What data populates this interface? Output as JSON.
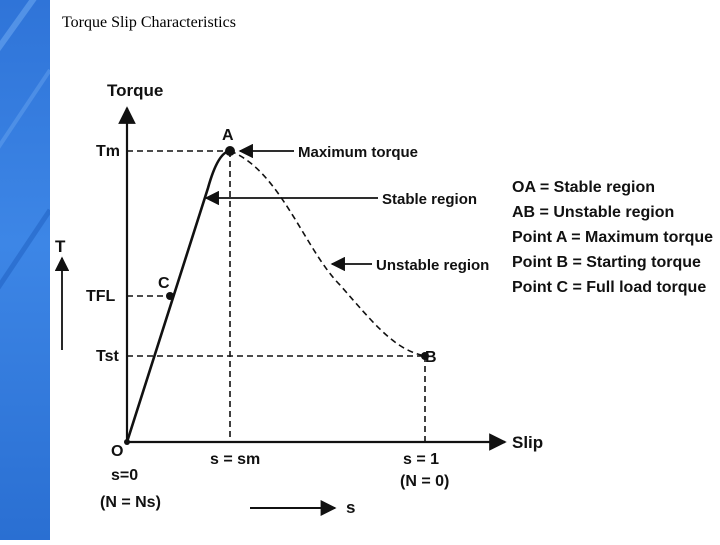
{
  "slide": {
    "title": "Torque Slip Characteristics",
    "accent_color": "#3a7fe0"
  },
  "diagram": {
    "y_axis_label": "Torque",
    "x_axis_label": "Slip",
    "t_arrow_label": "T",
    "s_arrow_label": "s",
    "origin_label": "O",
    "y_ticks": {
      "tm": "Tm",
      "tfl": "TFL",
      "tst": "Tst"
    },
    "point_labels": {
      "a": "A",
      "b": "B",
      "c": "C"
    },
    "x_ticks": {
      "s0": "s=0",
      "n_ns": "(N = Ns)",
      "sm": "s = sm",
      "s1": "s = 1",
      "n0": "(N = 0)"
    },
    "annotations": {
      "max_torque": "Maximum torque",
      "stable_region": "Stable region",
      "unstable_region": "Unstable region"
    },
    "legend": [
      "OA = Stable region",
      "AB = Unstable region",
      "Point A = Maximum torque",
      "Point B = Starting torque",
      "Point C = Full load torque"
    ]
  }
}
